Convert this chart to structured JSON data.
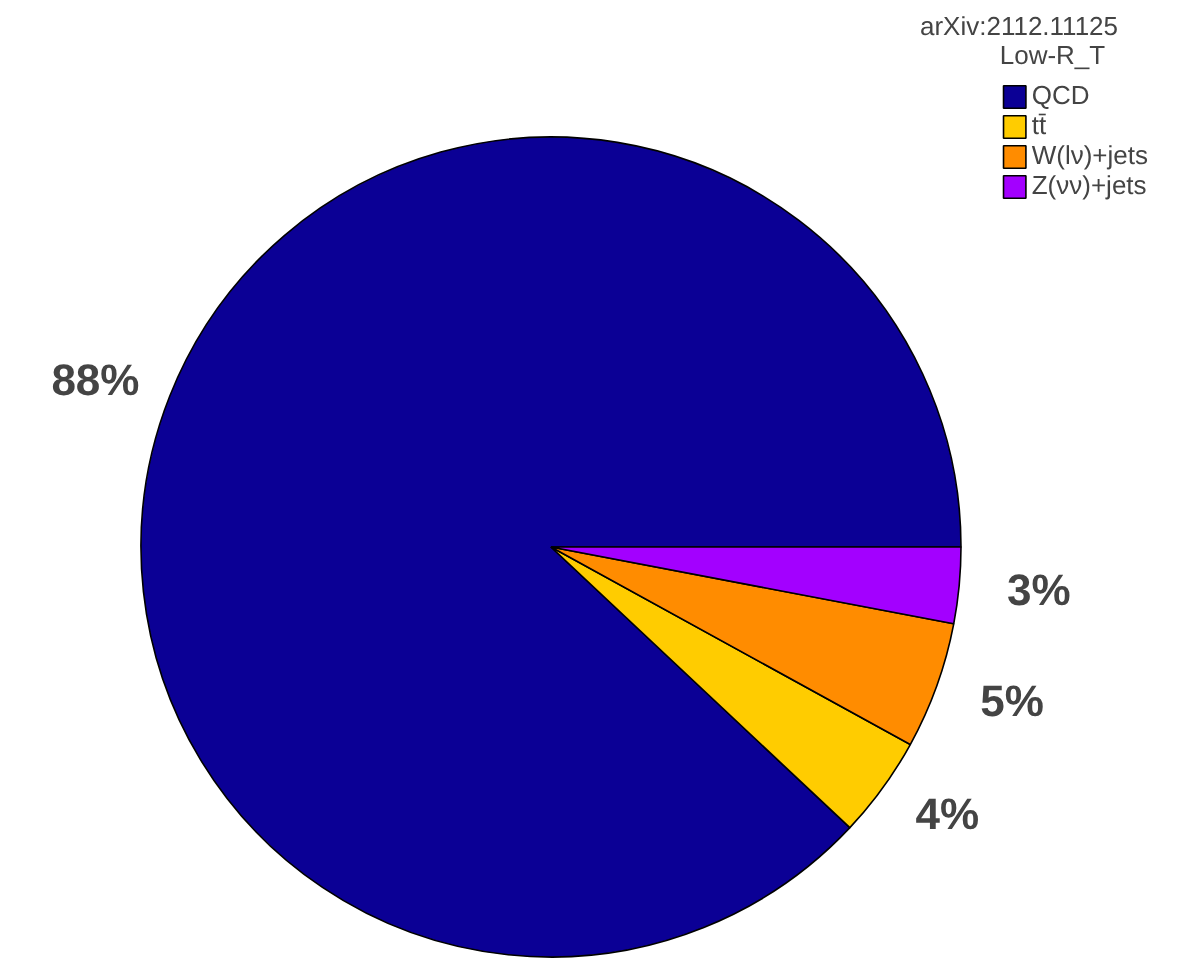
{
  "chart_data": {
    "type": "pie",
    "annotations": [
      "arXiv:2112.11125"
    ],
    "legend_title": "Low-R_T",
    "categories": [
      "QCD",
      "tt̄",
      "W(lν)+jets",
      "Z(νν)+jets"
    ],
    "values": [
      88,
      4,
      5,
      3
    ],
    "value_labels": [
      "88%",
      "4%",
      "5%",
      "3%"
    ],
    "colors": [
      "#0b0095",
      "#ffcc00",
      "#ff8c00",
      "#a300ff"
    ],
    "legend": "top right"
  }
}
